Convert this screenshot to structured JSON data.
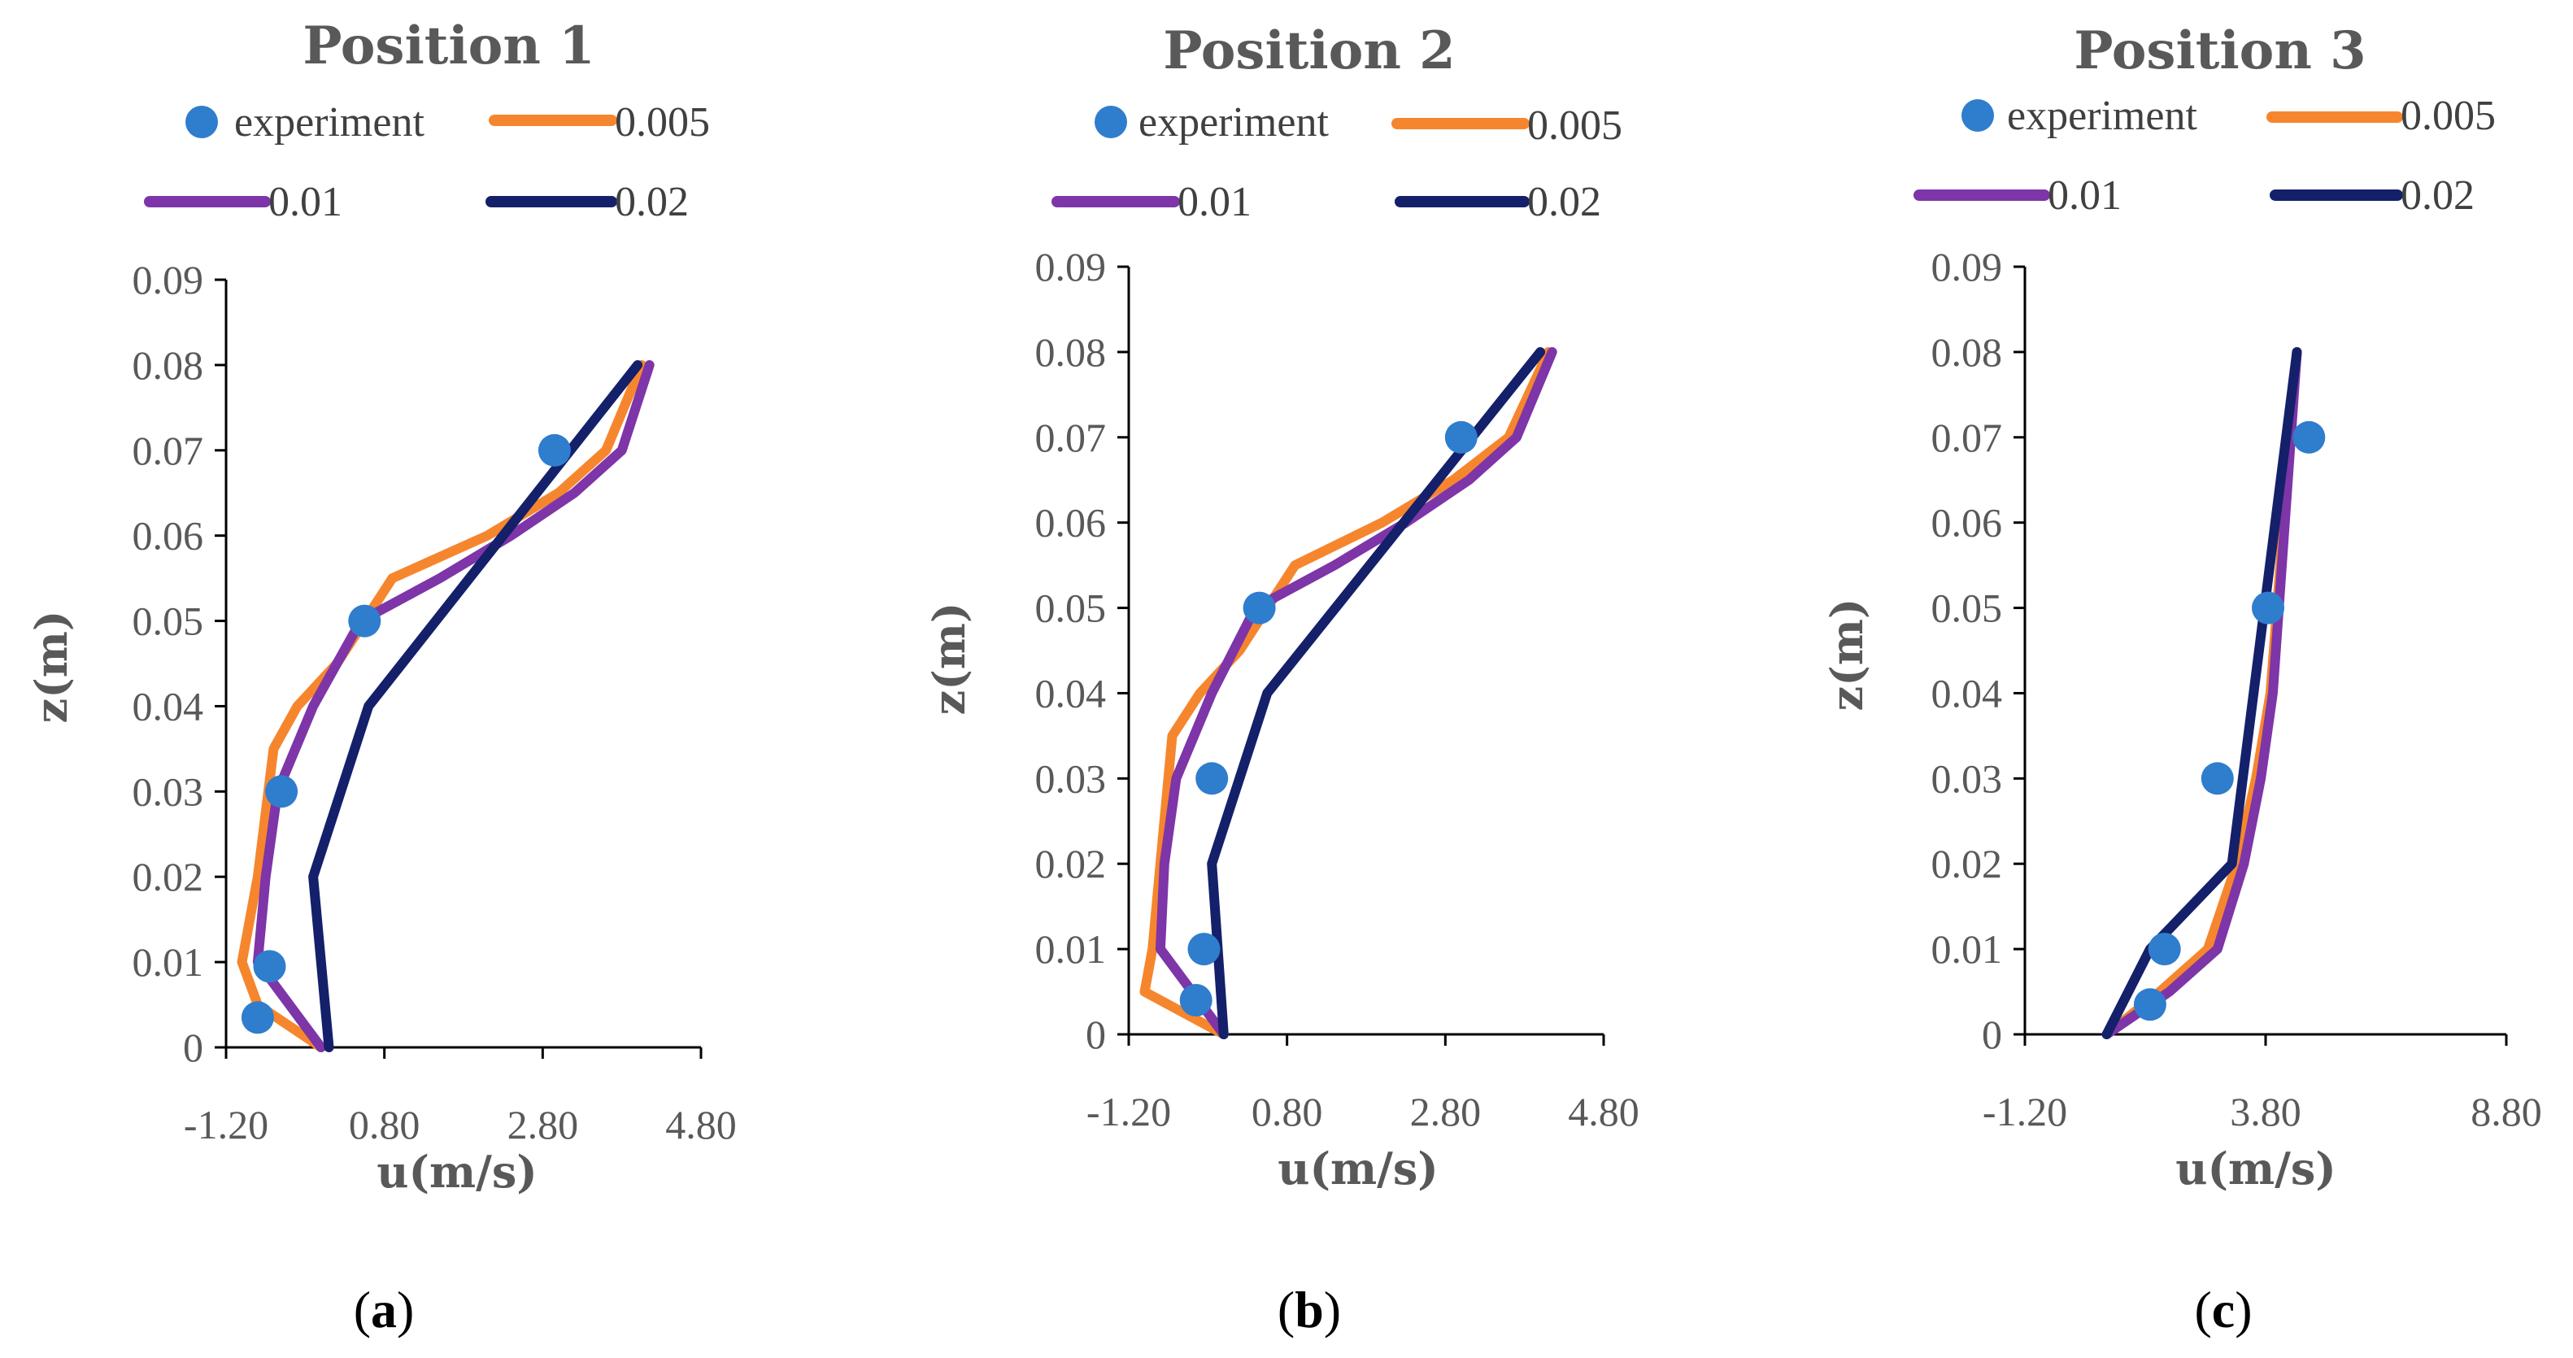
{
  "colors": {
    "experiment": "#2F7DCD",
    "s0005": "#F6862E",
    "s001": "#7E35A8",
    "s002": "#14206A"
  },
  "legend": {
    "experiment": "experiment",
    "s0005": "0.005",
    "s001": "0.01",
    "s002": "0.02"
  },
  "chart_data": [
    {
      "type": "scatter+line",
      "panel_label": "a",
      "title": "Position 1",
      "xlabel": "u(m/s)",
      "ylabel": "z(m)",
      "xlim": [
        -1.2,
        4.8
      ],
      "ylim": [
        0,
        0.09
      ],
      "xticks": [
        "-1.20",
        "0.80",
        "2.80",
        "4.80"
      ],
      "yticks": [
        "0",
        "0.01",
        "0.02",
        "0.03",
        "0.04",
        "0.05",
        "0.06",
        "0.07",
        "0.08",
        "0.09"
      ],
      "series": [
        {
          "name": "experiment",
          "kind": "scatter",
          "x": [
            -0.8,
            -0.65,
            -0.5,
            0.55,
            2.95
          ],
          "y": [
            0.0035,
            0.0095,
            0.03,
            0.05,
            0.07
          ]
        },
        {
          "name": "0.005",
          "kind": "line",
          "x": [
            0.0,
            -0.8,
            -1.0,
            -0.8,
            -0.6,
            -0.3,
            0.2,
            0.9,
            2.1,
            3.0,
            3.6,
            4.05
          ],
          "y": [
            0.0,
            0.005,
            0.01,
            0.02,
            0.035,
            0.04,
            0.045,
            0.055,
            0.06,
            0.065,
            0.07,
            0.08
          ]
        },
        {
          "name": "0.01",
          "kind": "line",
          "x": [
            0.0,
            -0.4,
            -0.8,
            -0.7,
            -0.55,
            -0.1,
            0.5,
            1.5,
            2.4,
            3.2,
            3.8,
            4.15
          ],
          "y": [
            0.0,
            0.005,
            0.01,
            0.02,
            0.03,
            0.04,
            0.05,
            0.055,
            0.06,
            0.065,
            0.07,
            0.08
          ]
        },
        {
          "name": "0.02",
          "kind": "line",
          "x": [
            0.1,
            -0.1,
            0.6,
            4.0
          ],
          "y": [
            0.0,
            0.02,
            0.04,
            0.08
          ]
        }
      ]
    },
    {
      "type": "scatter+line",
      "panel_label": "b",
      "title": "Position 2",
      "xlabel": "u(m/s)",
      "ylabel": "z(m)",
      "xlim": [
        -1.2,
        4.8
      ],
      "ylim": [
        0,
        0.09
      ],
      "xticks": [
        "-1.20",
        "0.80",
        "2.80",
        "4.80"
      ],
      "yticks": [
        "0",
        "0.01",
        "0.02",
        "0.03",
        "0.04",
        "0.05",
        "0.06",
        "0.07",
        "0.08",
        "0.09"
      ],
      "series": [
        {
          "name": "experiment",
          "kind": "scatter",
          "x": [
            -0.35,
            -0.25,
            -0.15,
            0.45,
            3.0
          ],
          "y": [
            0.004,
            0.01,
            0.03,
            0.05,
            0.07
          ]
        },
        {
          "name": "0.005",
          "kind": "line",
          "x": [
            0.0,
            -1.0,
            -0.9,
            -0.8,
            -0.65,
            -0.3,
            0.2,
            0.9,
            2.0,
            2.9,
            3.6,
            4.1
          ],
          "y": [
            0.0,
            0.005,
            0.01,
            0.02,
            0.035,
            0.04,
            0.045,
            0.055,
            0.06,
            0.065,
            0.07,
            0.08
          ]
        },
        {
          "name": "0.01",
          "kind": "line",
          "x": [
            0.0,
            -0.4,
            -0.8,
            -0.75,
            -0.6,
            -0.15,
            0.4,
            1.4,
            2.3,
            3.1,
            3.7,
            4.15
          ],
          "y": [
            0.0,
            0.005,
            0.01,
            0.02,
            0.03,
            0.04,
            0.05,
            0.055,
            0.06,
            0.065,
            0.07,
            0.08
          ]
        },
        {
          "name": "0.02",
          "kind": "line",
          "x": [
            0.0,
            -0.15,
            0.55,
            4.0
          ],
          "y": [
            0.0,
            0.02,
            0.04,
            0.08
          ]
        }
      ]
    },
    {
      "type": "scatter+line",
      "panel_label": "c",
      "title": "Position 3",
      "xlabel": "u(m/s)",
      "ylabel": "z(m)",
      "xlim": [
        -1.2,
        8.8
      ],
      "ylim": [
        0,
        0.09
      ],
      "xticks": [
        "-1.20",
        "3.80",
        "8.80"
      ],
      "yticks": [
        "0",
        "0.01",
        "0.02",
        "0.03",
        "0.04",
        "0.05",
        "0.06",
        "0.07",
        "0.08",
        "0.09"
      ],
      "series": [
        {
          "name": "experiment",
          "kind": "scatter",
          "x": [
            1.4,
            1.7,
            2.8,
            3.85,
            4.7
          ],
          "y": [
            0.0035,
            0.01,
            0.03,
            0.05,
            0.07
          ]
        },
        {
          "name": "0.005",
          "kind": "line",
          "x": [
            0.5,
            1.6,
            2.6,
            3.2,
            3.6,
            3.9,
            4.45
          ],
          "y": [
            0.0,
            0.005,
            0.01,
            0.02,
            0.03,
            0.04,
            0.08
          ]
        },
        {
          "name": "0.01",
          "kind": "line",
          "x": [
            0.5,
            1.8,
            2.8,
            3.35,
            3.7,
            3.95,
            4.45
          ],
          "y": [
            0.0,
            0.005,
            0.01,
            0.02,
            0.03,
            0.04,
            0.08
          ]
        },
        {
          "name": "0.02",
          "kind": "line",
          "x": [
            0.5,
            1.4,
            3.1,
            4.45
          ],
          "y": [
            0.0,
            0.01,
            0.02,
            0.08
          ]
        }
      ]
    }
  ]
}
